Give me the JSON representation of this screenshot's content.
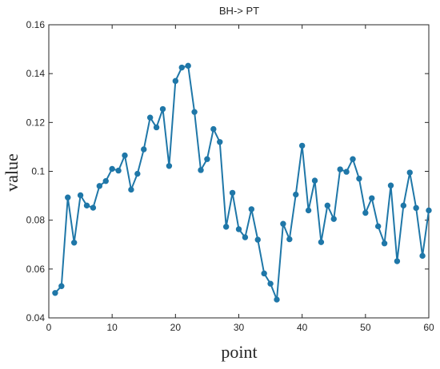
{
  "chart_data": {
    "type": "line",
    "title": "BH-> PT",
    "xlabel": "point",
    "ylabel": "value",
    "xlim": [
      0,
      60
    ],
    "ylim": [
      0.04,
      0.16
    ],
    "xticks": [
      0,
      10,
      20,
      30,
      40,
      50,
      60
    ],
    "yticks": [
      0.04,
      0.06,
      0.08,
      0.1,
      0.12,
      0.14,
      0.16
    ],
    "x_tick_labels": [
      "0",
      "10",
      "20",
      "30",
      "40",
      "50",
      "60"
    ],
    "y_tick_labels": [
      "0.04",
      "0.06",
      "0.08",
      "0.1",
      "0.12",
      "0.14",
      "0.16"
    ],
    "grid": false,
    "box": true,
    "marker": "circle",
    "line_color": "#1f77a8",
    "series": [
      {
        "x": [
          1,
          2,
          3,
          4,
          5,
          6,
          7,
          8,
          9,
          10,
          11,
          12,
          13,
          14,
          15,
          16,
          17,
          18,
          19,
          20,
          21,
          22,
          23,
          24,
          25,
          26,
          27,
          28,
          29,
          30,
          31,
          32,
          33,
          34,
          35,
          36,
          37,
          38,
          39,
          40,
          41,
          42,
          43,
          44,
          45,
          46,
          47,
          48,
          49,
          50,
          51,
          52,
          53,
          54,
          55,
          56,
          57,
          58,
          59,
          60
        ],
        "values": [
          0.0502,
          0.053,
          0.0893,
          0.0708,
          0.0902,
          0.086,
          0.0851,
          0.094,
          0.096,
          0.101,
          0.1003,
          0.1065,
          0.0925,
          0.099,
          0.109,
          0.122,
          0.118,
          0.1255,
          0.1022,
          0.137,
          0.1425,
          0.1432,
          0.1243,
          0.1005,
          0.105,
          0.1173,
          0.112,
          0.0773,
          0.0912,
          0.0763,
          0.073,
          0.0845,
          0.072,
          0.0582,
          0.054,
          0.0475,
          0.0785,
          0.0722,
          0.0905,
          0.1105,
          0.084,
          0.0962,
          0.071,
          0.086,
          0.0805,
          0.1008,
          0.0998,
          0.105,
          0.097,
          0.083,
          0.089,
          0.0775,
          0.0705,
          0.0942,
          0.0632,
          0.086,
          0.0995,
          0.085,
          0.0654,
          0.084
        ]
      }
    ]
  }
}
